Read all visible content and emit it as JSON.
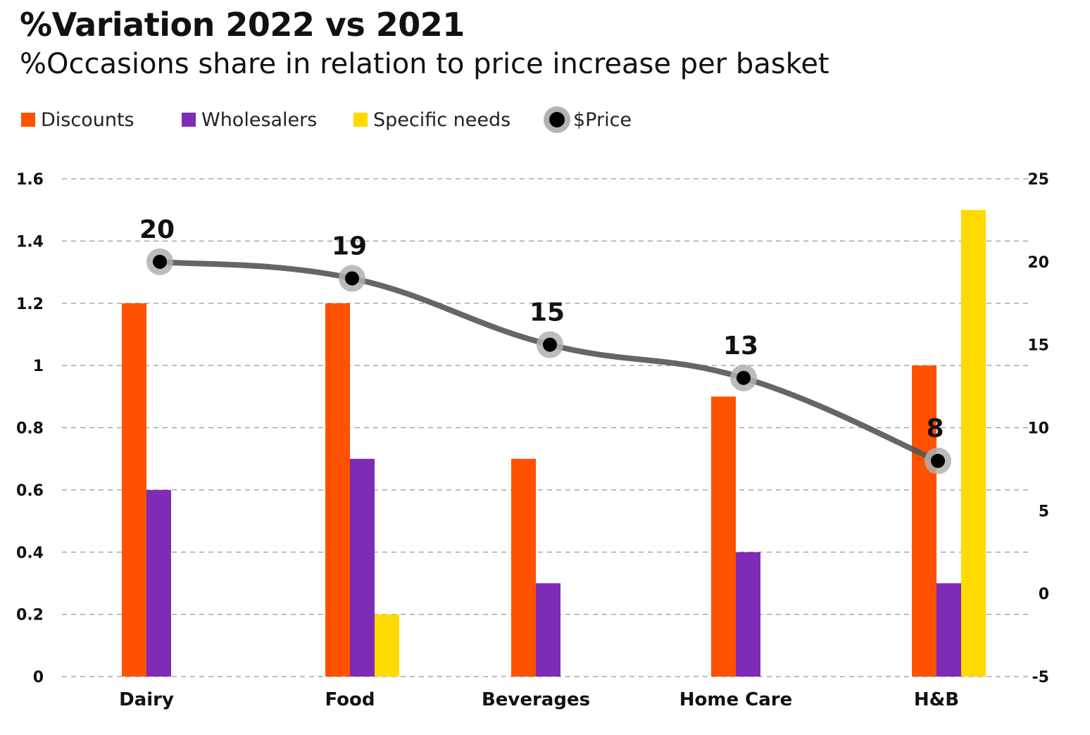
{
  "title": "%Variation 2022 vs 2021",
  "subtitle": "%Occasions share in relation to price increase per basket",
  "legend": [
    {
      "label": "Discounts",
      "color": "#FF5100",
      "kind": "bar"
    },
    {
      "label": "Wholesalers",
      "color": "#7E2BB8",
      "kind": "bar"
    },
    {
      "label": "Specific needs",
      "color": "#FFDA00",
      "kind": "bar"
    },
    {
      "label": "$Price",
      "color": "#000000",
      "kind": "dot"
    }
  ],
  "chart_data": {
    "type": "bar",
    "categories": [
      "Dairy",
      "Food",
      "Beverages",
      "Home Care",
      "H&B"
    ],
    "series": [
      {
        "name": "Discounts",
        "axis": "left",
        "color": "#FF5100",
        "values": [
          1.2,
          1.2,
          0.7,
          0.9,
          1.0
        ]
      },
      {
        "name": "Wholesalers",
        "axis": "left",
        "color": "#7E2BB8",
        "values": [
          0.6,
          0.7,
          0.3,
          0.4,
          0.3
        ]
      },
      {
        "name": "Specific needs",
        "axis": "left",
        "color": "#FFDA00",
        "values": [
          null,
          0.2,
          null,
          null,
          1.5
        ]
      },
      {
        "name": "$Price",
        "axis": "right",
        "type": "line",
        "color": "#555555",
        "values": [
          20,
          19,
          15,
          13,
          8
        ]
      }
    ],
    "y_left": {
      "range": [
        0,
        1.6
      ],
      "ticks": [
        "0",
        "0.2",
        "0.4",
        "0.6",
        "0.8",
        "1",
        "1.2",
        "1.4",
        "1.6"
      ]
    },
    "y_right": {
      "range": [
        -5,
        25
      ],
      "ticks": [
        "-5",
        "0",
        "5",
        "10",
        "15",
        "20",
        "25"
      ]
    },
    "grid": "horizontal dashed",
    "legend_position": "top-left"
  }
}
